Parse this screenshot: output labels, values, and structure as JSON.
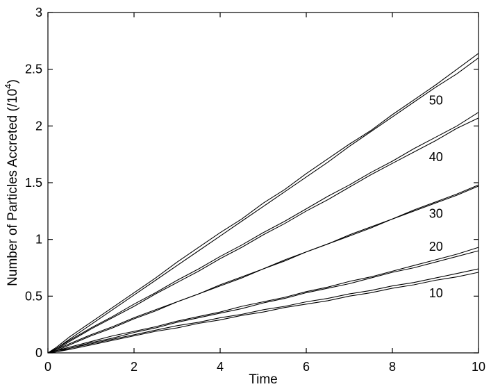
{
  "chart_data": {
    "type": "line",
    "title": "",
    "xlabel": "Time",
    "ylabel": "Number of Particles Accreted (/10",
    "ylabel_exponent": "4",
    "ylabel_close": ")",
    "xlim": [
      0,
      10
    ],
    "ylim": [
      0,
      3
    ],
    "x_ticks": [
      0,
      2,
      4,
      6,
      8,
      10
    ],
    "x_tick_labels": [
      "0",
      "2",
      "4",
      "6",
      "8",
      "10"
    ],
    "y_ticks": [
      0,
      0.5,
      1,
      1.5,
      2,
      2.5,
      3
    ],
    "y_tick_labels": [
      "0",
      "0.5",
      "1",
      "1.5",
      "2",
      "2.5",
      "3"
    ],
    "grid": false,
    "legend": "none",
    "line_color": "#000000",
    "series_label_positions": [
      {
        "text": "50",
        "x": 8.85,
        "y": 2.19
      },
      {
        "text": "40",
        "x": 8.85,
        "y": 1.69
      },
      {
        "text": "30",
        "x": 8.85,
        "y": 1.19
      },
      {
        "text": "20",
        "x": 8.85,
        "y": 0.9
      },
      {
        "text": "10",
        "x": 8.85,
        "y": 0.49
      }
    ],
    "series": [
      {
        "label": "50",
        "pairs": [
          {
            "x": [
              0,
              0.2,
              0.5,
              1,
              1.5,
              2,
              2.5,
              3,
              3.5,
              4,
              4.5,
              5,
              5.5,
              6,
              6.5,
              7,
              7.5,
              8,
              8.5,
              9,
              9.5,
              10
            ],
            "y": [
              0,
              0.05,
              0.14,
              0.27,
              0.4,
              0.53,
              0.66,
              0.8,
              0.93,
              1.06,
              1.18,
              1.32,
              1.44,
              1.58,
              1.71,
              1.84,
              1.96,
              2.1,
              2.23,
              2.36,
              2.5,
              2.64
            ]
          },
          {
            "x": [
              0,
              0.2,
              0.5,
              1,
              1.5,
              2,
              2.5,
              3,
              3.5,
              4,
              4.5,
              5,
              5.5,
              6,
              6.5,
              7,
              7.5,
              8,
              8.5,
              9,
              9.5,
              10
            ],
            "y": [
              0,
              0.04,
              0.12,
              0.25,
              0.38,
              0.51,
              0.64,
              0.77,
              0.9,
              1.03,
              1.16,
              1.29,
              1.42,
              1.55,
              1.68,
              1.82,
              1.95,
              2.08,
              2.21,
              2.34,
              2.46,
              2.6
            ]
          }
        ]
      },
      {
        "label": "40",
        "pairs": [
          {
            "x": [
              0,
              0.2,
              0.5,
              1,
              1.5,
              2,
              2.5,
              3,
              3.5,
              4,
              4.5,
              5,
              5.5,
              6,
              6.5,
              7,
              7.5,
              8,
              8.5,
              9,
              9.5,
              10
            ],
            "y": [
              0,
              0.04,
              0.11,
              0.22,
              0.32,
              0.43,
              0.53,
              0.64,
              0.74,
              0.85,
              0.95,
              1.06,
              1.16,
              1.27,
              1.38,
              1.48,
              1.59,
              1.69,
              1.8,
              1.9,
              2.0,
              2.12
            ]
          },
          {
            "x": [
              0,
              0.2,
              0.5,
              1,
              1.5,
              2,
              2.5,
              3,
              3.5,
              4,
              4.5,
              5,
              5.5,
              6,
              6.5,
              7,
              7.5,
              8,
              8.5,
              9,
              9.5,
              10
            ],
            "y": [
              0,
              0.03,
              0.1,
              0.21,
              0.31,
              0.41,
              0.52,
              0.62,
              0.72,
              0.83,
              0.93,
              1.04,
              1.14,
              1.25,
              1.35,
              1.46,
              1.57,
              1.67,
              1.77,
              1.87,
              1.98,
              2.07
            ]
          }
        ]
      },
      {
        "label": "30",
        "pairs": [
          {
            "x": [
              0,
              0.2,
              0.5,
              1,
              1.5,
              2,
              2.5,
              3,
              3.5,
              4,
              4.5,
              5,
              5.5,
              6,
              6.5,
              7,
              7.5,
              8,
              8.5,
              9,
              9.5,
              10
            ],
            "y": [
              0,
              0.03,
              0.08,
              0.16,
              0.23,
              0.31,
              0.38,
              0.45,
              0.52,
              0.6,
              0.67,
              0.74,
              0.81,
              0.89,
              0.96,
              1.04,
              1.11,
              1.18,
              1.26,
              1.33,
              1.4,
              1.48
            ]
          },
          {
            "x": [
              0,
              0.2,
              0.5,
              1,
              1.5,
              2,
              2.5,
              3,
              3.5,
              4,
              4.5,
              5,
              5.5,
              6,
              6.5,
              7,
              7.5,
              8,
              8.5,
              9,
              9.5,
              10
            ],
            "y": [
              0,
              0.02,
              0.07,
              0.15,
              0.22,
              0.3,
              0.37,
              0.45,
              0.52,
              0.59,
              0.66,
              0.74,
              0.82,
              0.89,
              0.96,
              1.03,
              1.1,
              1.18,
              1.25,
              1.32,
              1.39,
              1.47
            ]
          }
        ]
      },
      {
        "label": "20",
        "pairs": [
          {
            "x": [
              0,
              0.2,
              0.5,
              1,
              1.5,
              2,
              2.5,
              3,
              3.5,
              4,
              4.5,
              5,
              5.5,
              6,
              6.5,
              7,
              7.5,
              8,
              8.5,
              9,
              9.5,
              10
            ],
            "y": [
              0,
              0.02,
              0.05,
              0.1,
              0.15,
              0.19,
              0.23,
              0.28,
              0.32,
              0.36,
              0.41,
              0.45,
              0.49,
              0.54,
              0.58,
              0.63,
              0.67,
              0.72,
              0.77,
              0.82,
              0.87,
              0.93
            ]
          },
          {
            "x": [
              0,
              0.2,
              0.5,
              1,
              1.5,
              2,
              2.5,
              3,
              3.5,
              4,
              4.5,
              5,
              5.5,
              6,
              6.5,
              7,
              7.5,
              8,
              8.5,
              9,
              9.5,
              10
            ],
            "y": [
              0,
              0.02,
              0.04,
              0.09,
              0.13,
              0.18,
              0.22,
              0.27,
              0.31,
              0.35,
              0.39,
              0.44,
              0.48,
              0.53,
              0.57,
              0.61,
              0.66,
              0.71,
              0.75,
              0.8,
              0.85,
              0.9
            ]
          }
        ]
      },
      {
        "label": "10",
        "pairs": [
          {
            "x": [
              0,
              0.2,
              0.5,
              1,
              1.5,
              2,
              2.5,
              3,
              3.5,
              4,
              4.5,
              5,
              5.5,
              6,
              6.5,
              7,
              7.5,
              8,
              8.5,
              9,
              9.5,
              10
            ],
            "y": [
              0,
              0.01,
              0.04,
              0.08,
              0.12,
              0.16,
              0.2,
              0.24,
              0.27,
              0.31,
              0.34,
              0.38,
              0.41,
              0.45,
              0.48,
              0.52,
              0.55,
              0.59,
              0.62,
              0.66,
              0.7,
              0.74
            ]
          },
          {
            "x": [
              0,
              0.2,
              0.5,
              1,
              1.5,
              2,
              2.5,
              3,
              3.5,
              4,
              4.5,
              5,
              5.5,
              6,
              6.5,
              7,
              7.5,
              8,
              8.5,
              9,
              9.5,
              10
            ],
            "y": [
              0,
              0.01,
              0.03,
              0.07,
              0.11,
              0.15,
              0.19,
              0.22,
              0.26,
              0.29,
              0.33,
              0.36,
              0.4,
              0.43,
              0.46,
              0.5,
              0.53,
              0.57,
              0.6,
              0.64,
              0.67,
              0.71
            ]
          }
        ]
      }
    ]
  }
}
